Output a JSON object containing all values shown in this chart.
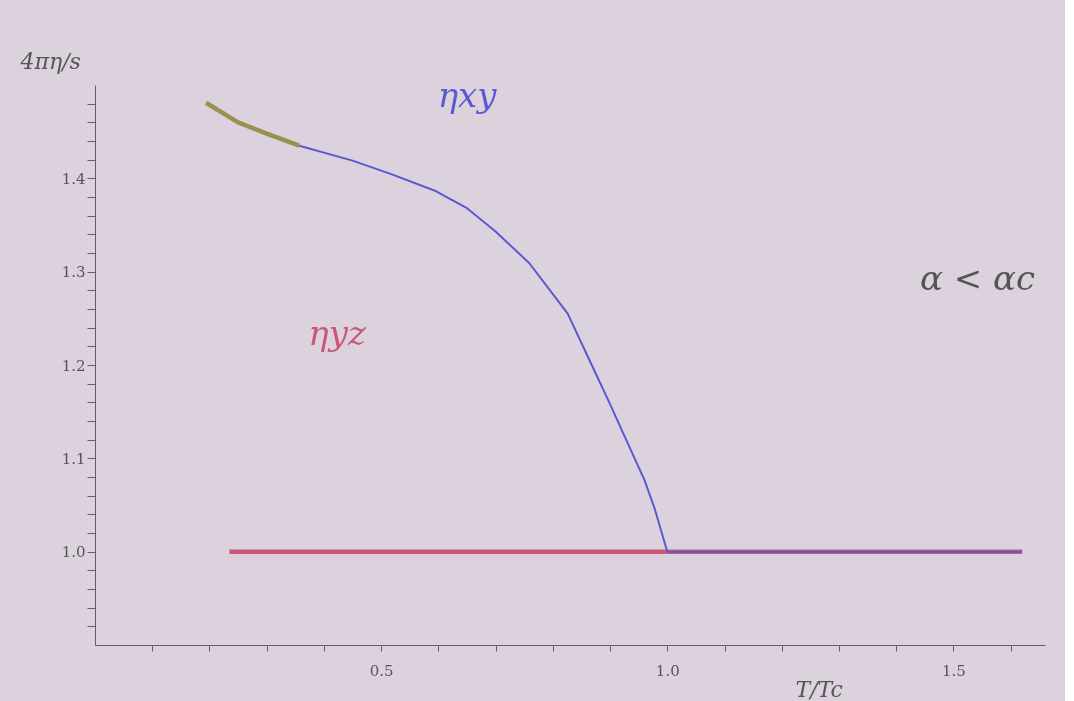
{
  "chart_data": {
    "type": "line",
    "xlabel": "T/Tc",
    "ylabel": "4πη/s",
    "xlim": [
      0,
      1.66
    ],
    "ylim": [
      0.9,
      1.5
    ],
    "xticks": [
      {
        "value": 0.1,
        "label": null
      },
      {
        "value": 0.2,
        "label": null
      },
      {
        "value": 0.3,
        "label": null
      },
      {
        "value": 0.4,
        "label": null
      },
      0.5,
      {
        "value": 0.6,
        "label": null
      },
      {
        "value": 0.7,
        "label": null
      },
      {
        "value": 0.8,
        "label": null
      },
      {
        "value": 0.9,
        "label": null
      },
      {
        "value": 1.0,
        "label": "1.0"
      },
      {
        "value": 1.1,
        "label": null
      },
      {
        "value": 1.2,
        "label": null
      },
      {
        "value": 1.3,
        "label": null
      },
      {
        "value": 1.4,
        "label": null
      },
      1.5,
      {
        "value": 1.6,
        "label": null
      }
    ],
    "yticks": [
      {
        "value": 0.92,
        "label": null
      },
      {
        "value": 0.94,
        "label": null
      },
      {
        "value": 0.96,
        "label": null
      },
      {
        "value": 0.98,
        "label": null
      },
      {
        "value": 1.0,
        "label": "1.0"
      },
      {
        "value": 1.02,
        "label": null
      },
      {
        "value": 1.04,
        "label": null
      },
      {
        "value": 1.06,
        "label": null
      },
      {
        "value": 1.08,
        "label": null
      },
      1.1,
      {
        "value": 1.12,
        "label": null
      },
      {
        "value": 1.14,
        "label": null
      },
      {
        "value": 1.16,
        "label": null
      },
      {
        "value": 1.18,
        "label": null
      },
      1.2,
      {
        "value": 1.22,
        "label": null
      },
      {
        "value": 1.24,
        "label": null
      },
      {
        "value": 1.26,
        "label": null
      },
      {
        "value": 1.28,
        "label": null
      },
      1.3,
      {
        "value": 1.32,
        "label": null
      },
      {
        "value": 1.34,
        "label": null
      },
      {
        "value": 1.36,
        "label": null
      },
      {
        "value": 1.38,
        "label": null
      },
      1.4,
      {
        "value": 1.42,
        "label": null
      },
      {
        "value": 1.44,
        "label": null
      },
      {
        "value": 1.46,
        "label": null
      },
      {
        "value": 1.48,
        "label": null
      }
    ],
    "grid": false,
    "legend": false,
    "marker": "none",
    "line_style": "solid",
    "series": [
      {
        "name": "ηyz",
        "color": "#c85878",
        "x": [
          0.235,
          0.6,
          1.0,
          1.62
        ],
        "values": [
          1.0,
          1.0,
          1.0,
          1.0
        ]
      },
      {
        "color": "#9a9050",
        "x": [
          0.194,
          0.25,
          0.3,
          0.357
        ],
        "values": [
          1.481,
          1.46,
          1.448,
          1.435
        ]
      },
      {
        "name": "ηxy",
        "color": "#5a5ad0",
        "x": [
          0.357,
          0.45,
          0.52,
          0.593,
          0.65,
          0.7,
          0.759,
          0.826,
          0.868,
          0.9,
          0.931,
          0.96,
          0.978,
          1.0,
          1.62
        ],
        "values": [
          1.435,
          1.419,
          1.404,
          1.387,
          1.368,
          1.343,
          1.309,
          1.255,
          1.2,
          1.158,
          1.116,
          1.077,
          1.046,
          1.0,
          1.0
        ]
      }
    ],
    "annotations": [
      "α < αc"
    ]
  }
}
